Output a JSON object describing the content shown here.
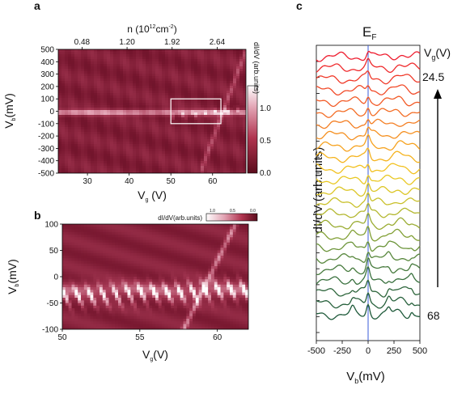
{
  "panels": {
    "a": "a",
    "b": "b",
    "c": "c"
  },
  "chart_data": [
    {
      "panel": "a",
      "type": "heatmap",
      "xlabel_main": "V",
      "xlabel_sub": "g",
      "xlabel_tail": " (V)",
      "ylabel_main": "V",
      "ylabel_sub": "b",
      "ylabel_tail": "(mV)",
      "xlim": [
        23,
        68
      ],
      "ylim": [
        -500,
        500
      ],
      "x_ticks": [
        30,
        40,
        50,
        60
      ],
      "y_ticks": [
        500,
        400,
        300,
        200,
        100,
        0,
        -100,
        -200,
        -300,
        -400,
        -500
      ],
      "top_axis": {
        "label_pre": "n (10",
        "label_sup": "12",
        "label_mid": "cm",
        "label_sup2": "-2",
        "label_post": ")",
        "ticks": [
          "0.48",
          "1.20",
          "1.92",
          "2.64"
        ],
        "tick_vg": [
          28.7,
          39.5,
          50.3,
          61.1
        ]
      },
      "colorbar": {
        "label": "dI/dV (arb.units)",
        "ticks": [
          "1.0",
          "0.5",
          "0.0"
        ],
        "range": [
          0.0,
          1.3
        ]
      },
      "inset_box": {
        "vg": [
          50,
          62
        ],
        "vb": [
          -100,
          100
        ]
      }
    },
    {
      "panel": "b",
      "type": "heatmap",
      "xlabel_main": "V",
      "xlabel_sub": "g",
      "xlabel_tail": "(V)",
      "ylabel_main": "V",
      "ylabel_sub": "b",
      "ylabel_tail": "(mV)",
      "xlim": [
        50,
        62
      ],
      "ylim": [
        -100,
        100
      ],
      "x_ticks": [
        50,
        55,
        60
      ],
      "y_ticks": [
        100,
        50,
        0,
        -50,
        -100
      ],
      "colorbar": {
        "label": "dI/dV(arb.units)",
        "ticks": [
          "1.0",
          "0.5",
          "0.0"
        ]
      }
    },
    {
      "panel": "c",
      "type": "line",
      "xlabel_main": "V",
      "xlabel_sub": "b",
      "xlabel_tail": "(mV)",
      "ylabel": "dI/dV (arb.units)",
      "xlim": [
        -500,
        500
      ],
      "x_ticks": [
        "-500",
        "-250",
        "0",
        "250",
        "500"
      ],
      "x_tick_values": [
        -500,
        -250,
        0,
        250,
        500
      ],
      "fermi_label_main": "E",
      "fermi_label_sub": "F",
      "fermi_energy_mV": 0,
      "vg_label_main": "V",
      "vg_label_sub": "g",
      "vg_label_tail": "(V)",
      "vg_top": "24.5",
      "vg_bottom": "68",
      "n_curves": 24,
      "curve_colors_top_to_bottom": [
        "#ee1c2e",
        "#ef2a2c",
        "#f03a2a",
        "#f14a28",
        "#f25a26",
        "#f36c24",
        "#f47e22",
        "#f59020",
        "#f6a21e",
        "#f5b31e",
        "#f2c120",
        "#e9c823",
        "#dcc626",
        "#c9c02a",
        "#b3b72e",
        "#9aac32",
        "#82a036",
        "#6b9439",
        "#57873c",
        "#467a3d",
        "#38703d",
        "#2e663c",
        "#26603b",
        "#1e5a3a"
      ]
    }
  ]
}
